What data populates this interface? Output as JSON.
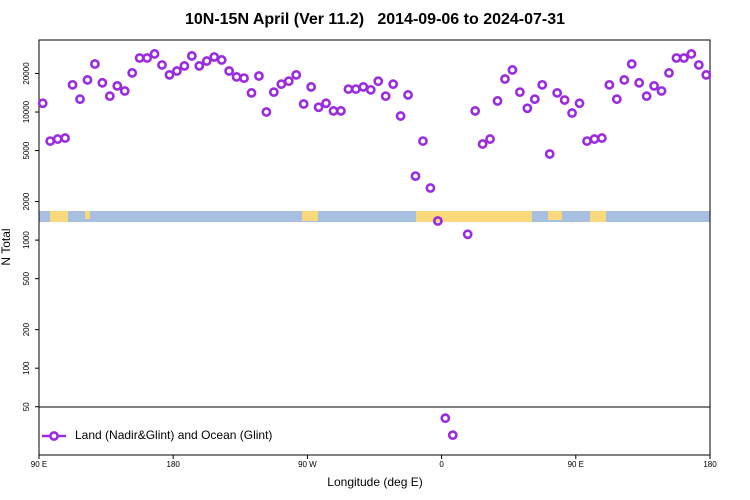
{
  "chart_data": {
    "type": "scatter",
    "title": "10N-15N April (Ver 11.2)   2014-09-06 to 2024-07-31",
    "x_label": "Longitude (deg E)",
    "y_label": "N Total",
    "log_y": true,
    "legend": "bottom-left",
    "xlim": [
      90,
      540
    ],
    "xticks": [
      {
        "value": 90,
        "label": "90 E"
      },
      180,
      {
        "value": 270,
        "label": "90 W"
      },
      {
        "value": 360,
        "label": "0"
      },
      {
        "value": 450,
        "label": "90 E"
      },
      {
        "value": 540,
        "label": "180"
      }
    ],
    "ylim": [
      21,
      36500
    ],
    "yticks": [
      50,
      100,
      200,
      500,
      1000,
      2000,
      5000,
      10000,
      20000
    ],
    "series": [
      {
        "name": "Land (Nadir&Glint) and Ocean (Glint)",
        "color": "#9b2be0",
        "x": [
          92.5,
          97.5,
          102.5,
          107.5,
          112.5,
          117.5,
          122.5,
          127.5,
          132.5,
          137.5,
          142.5,
          147.5,
          152.5,
          157.5,
          162.5,
          167.5,
          172.5,
          177.5,
          182.5,
          187.5,
          192.5,
          197.5,
          202.5,
          207.5,
          212.5,
          217.5,
          222.5,
          227.5,
          232.5,
          237.5,
          242.5,
          247.5,
          252.5,
          257.5,
          262.5,
          267.5,
          272.5,
          277.5,
          282.5,
          287.5,
          292.5,
          297.5,
          302.5,
          307.5,
          312.5,
          317.5,
          322.5,
          327.5,
          332.5,
          337.5,
          342.5,
          347.5,
          352.5,
          357.5,
          362.5,
          367.5,
          377.5,
          382.5,
          387.5,
          392.5,
          397.5,
          402.5,
          407.5,
          412.5,
          417.5,
          422.5,
          427.5,
          432.5,
          437.5,
          442.5,
          447.5,
          452.5,
          457.5,
          462.5,
          467.5,
          472.5,
          477.5,
          482.5,
          487.5,
          492.5,
          497.5,
          502.5,
          507.5,
          512.5,
          517.5,
          522.5,
          527.5,
          532.5,
          537.5
        ],
        "values": [
          11700,
          5930,
          6150,
          6260,
          16300,
          12600,
          17800,
          23700,
          16900,
          13300,
          16000,
          14600,
          20200,
          26400,
          26400,
          28400,
          23300,
          19500,
          20900,
          22900,
          27400,
          22900,
          25000,
          26900,
          25500,
          20900,
          18800,
          18400,
          14100,
          19100,
          10000,
          14300,
          16500,
          17400,
          19500,
          11550,
          15700,
          10900,
          11700,
          10200,
          10200,
          15100,
          15100,
          15700,
          14900,
          17400,
          13300,
          16500,
          9300,
          13600,
          3160,
          5930,
          2550,
          1410,
          40.7,
          30,
          1110,
          10200,
          5620,
          6150,
          12200,
          18100,
          21300,
          14300,
          10700,
          12600,
          16300,
          4700,
          14100,
          12400,
          9820,
          11700,
          5930,
          6150,
          6260,
          16300,
          12600,
          17800,
          23700,
          16900,
          13300,
          16000,
          14600,
          20200,
          26400,
          26400,
          28400,
          23300,
          19500
        ]
      }
    ]
  }
}
